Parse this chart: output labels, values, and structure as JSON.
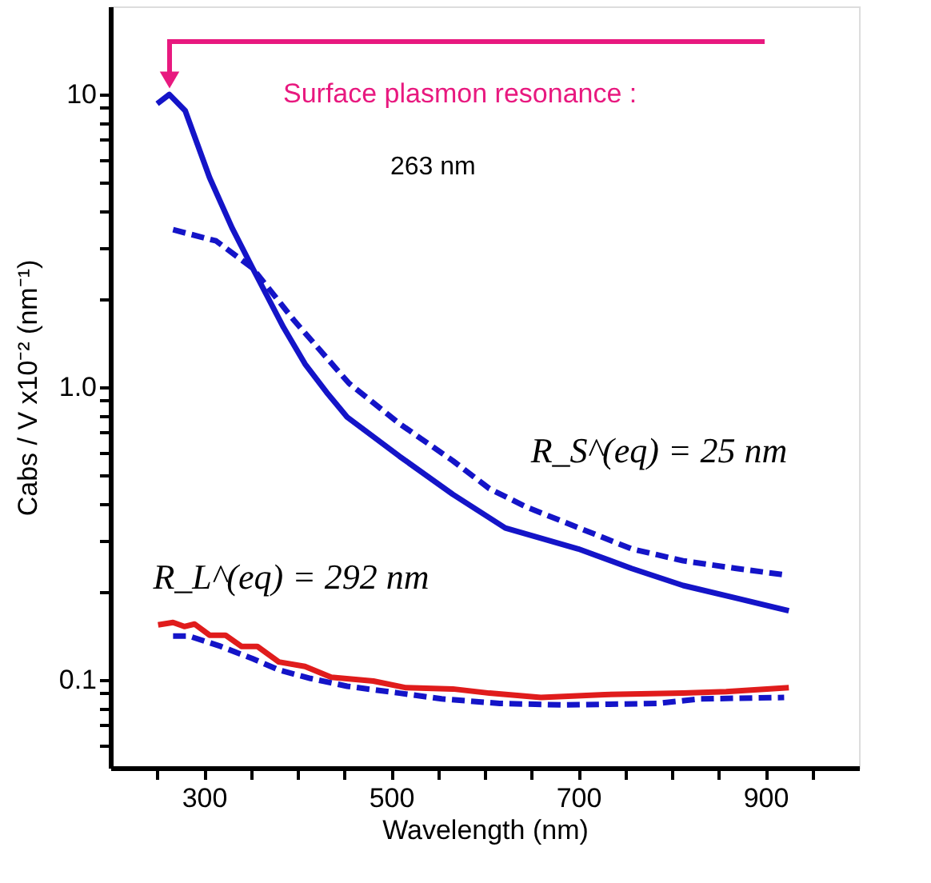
{
  "chart_data": {
    "type": "line",
    "xlabel": "Wavelength (nm)",
    "ylabel": "Cabs / V x10⁻² (nm⁻¹)",
    "log": "y",
    "xlim": [
      200,
      1000
    ],
    "ylim": [
      0.05,
      20
    ],
    "xticks": [
      {
        "value": 250,
        "label": null
      },
      300,
      {
        "value": 350,
        "label": null
      },
      {
        "value": 400,
        "label": null
      },
      {
        "value": 450,
        "label": null
      },
      500,
      {
        "value": 550,
        "label": null
      },
      {
        "value": 600,
        "label": null
      },
      {
        "value": 650,
        "label": null
      },
      700,
      {
        "value": 750,
        "label": null
      },
      {
        "value": 800,
        "label": null
      },
      {
        "value": 850,
        "label": null
      },
      900,
      {
        "value": 950,
        "label": null
      }
    ],
    "yticks": [
      {
        "value": 0.06,
        "label": null
      },
      {
        "value": 0.07,
        "label": null
      },
      {
        "value": 0.08,
        "label": null
      },
      {
        "value": 0.09,
        "label": null
      },
      0.1,
      {
        "value": 0.2,
        "label": null
      },
      {
        "value": 0.3,
        "label": null
      },
      {
        "value": 0.4,
        "label": null
      },
      {
        "value": 0.5,
        "label": null
      },
      {
        "value": 0.6,
        "label": null
      },
      {
        "value": 0.7,
        "label": null
      },
      {
        "value": 0.8,
        "label": null
      },
      {
        "value": 0.9,
        "label": null
      },
      {
        "value": 1,
        "label": "1.0"
      },
      {
        "value": 2,
        "label": null
      },
      {
        "value": 3,
        "label": null
      },
      {
        "value": 4,
        "label": null
      },
      {
        "value": 5,
        "label": null
      },
      {
        "value": 6,
        "label": null
      },
      {
        "value": 7,
        "label": null
      },
      {
        "value": 8,
        "label": null
      },
      {
        "value": 9,
        "label": null
      },
      10
    ],
    "grid": false,
    "series": [
      {
        "color": "#1414c8",
        "line_style": "solid",
        "x": [
          250,
          263,
          280,
          306,
          330,
          352,
          385,
          408,
          431,
          453,
          509,
          566,
          622,
          700,
          757,
          812,
          869,
          925
        ],
        "values": [
          9.3,
          10,
          8.8,
          5.2,
          3.5,
          2.55,
          1.6,
          1.2,
          0.96,
          0.79,
          0.58,
          0.43,
          0.33,
          0.28,
          0.24,
          0.21,
          0.19,
          0.172
        ]
      },
      {
        "color": "#1414c8",
        "line_style": "dashed",
        "x": [
          267,
          313,
          352,
          397,
          455,
          509,
          566,
          605,
          644,
          701,
          757,
          812,
          869,
          922
        ],
        "values": [
          3.45,
          3.16,
          2.55,
          1.68,
          1.03,
          0.75,
          0.56,
          0.45,
          0.39,
          0.33,
          0.28,
          0.255,
          0.24,
          0.228
        ]
      },
      {
        "color": "#e01c1c",
        "line_style": "solid",
        "x": [
          251,
          267,
          279,
          290,
          306,
          323,
          340,
          357,
          380,
          408,
          436,
          481,
          515,
          566,
          605,
          660,
          728,
          812,
          858,
          925
        ],
        "values": [
          0.154,
          0.157,
          0.152,
          0.155,
          0.142,
          0.142,
          0.13,
          0.13,
          0.115,
          0.111,
          0.102,
          0.099,
          0.094,
          0.093,
          0.09,
          0.087,
          0.089,
          0.09,
          0.091,
          0.094
        ]
      },
      {
        "color": "#1414c8",
        "line_style": "dashed",
        "x": [
          267,
          284,
          318,
          352,
          380,
          414,
          453,
          509,
          554,
          616,
          684,
          785,
          830,
          920
        ],
        "values": [
          0.141,
          0.141,
          0.13,
          0.118,
          0.108,
          0.101,
          0.095,
          0.09,
          0.086,
          0.083,
          0.082,
          0.083,
          0.086,
          0.087
        ]
      }
    ],
    "annotations": [
      "Surface plasmon resonance :",
      "263 nm",
      "R_S^(eq) = 25 nm",
      "R_L^(eq) = 292 nm"
    ]
  }
}
